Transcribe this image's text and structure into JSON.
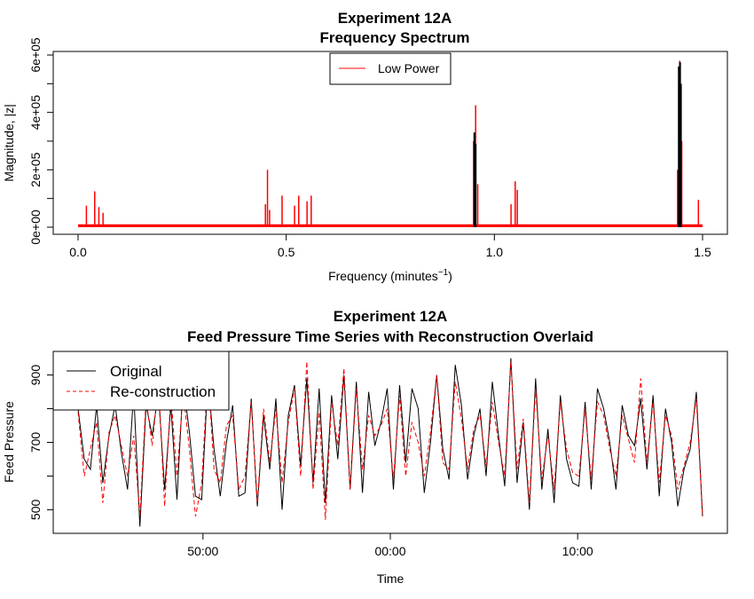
{
  "chart_data": [
    {
      "type": "line",
      "title": "Experiment 12A",
      "subtitle": "Frequency Spectrum",
      "xlabel": "Frequency (minutes",
      "xlabel_sup": "−1",
      "xlabel_suffix": ")",
      "ylabel": "Magnitude, |z|",
      "xlim": [
        0,
        1.5
      ],
      "ylim": [
        0,
        600000
      ],
      "x_ticks": [
        0.0,
        0.5,
        1.0,
        1.5
      ],
      "x_tick_labels": [
        "0.0",
        "0.5",
        "1.0",
        "1.5"
      ],
      "y_ticks": [
        0,
        200000,
        400000,
        600000
      ],
      "y_tick_labels": [
        "0e+00",
        "2e+05",
        "4e+05",
        "6e+05"
      ],
      "legend": {
        "position": "top-center",
        "entries": [
          "Low Power"
        ]
      },
      "series": [
        {
          "name": "Low Power",
          "color": "#ff0000",
          "baseline": 10000,
          "peaks": [
            {
              "x": 0.02,
              "y": 75000
            },
            {
              "x": 0.04,
              "y": 125000
            },
            {
              "x": 0.05,
              "y": 70000
            },
            {
              "x": 0.06,
              "y": 50000
            },
            {
              "x": 0.45,
              "y": 80000
            },
            {
              "x": 0.455,
              "y": 200000
            },
            {
              "x": 0.46,
              "y": 60000
            },
            {
              "x": 0.49,
              "y": 110000
            },
            {
              "x": 0.52,
              "y": 75000
            },
            {
              "x": 0.53,
              "y": 110000
            },
            {
              "x": 0.55,
              "y": 90000
            },
            {
              "x": 0.56,
              "y": 110000
            },
            {
              "x": 0.95,
              "y": 300000
            },
            {
              "x": 0.955,
              "y": 425000
            },
            {
              "x": 0.96,
              "y": 150000
            },
            {
              "x": 1.04,
              "y": 80000
            },
            {
              "x": 1.05,
              "y": 160000
            },
            {
              "x": 1.055,
              "y": 130000
            },
            {
              "x": 1.44,
              "y": 200000
            },
            {
              "x": 1.445,
              "y": 580000
            },
            {
              "x": 1.45,
              "y": 300000
            },
            {
              "x": 1.49,
              "y": 95000
            }
          ]
        },
        {
          "name": "",
          "color": "#000000",
          "peaks": [
            {
              "x": 0.952,
              "y": 330000
            },
            {
              "x": 0.955,
              "y": 290000
            },
            {
              "x": 1.443,
              "y": 560000
            },
            {
              "x": 1.446,
              "y": 575000
            },
            {
              "x": 1.448,
              "y": 500000
            }
          ]
        }
      ]
    },
    {
      "type": "line",
      "title": "Experiment 12A",
      "subtitle": "Feed Pressure Time Series with Reconstruction Overlaid",
      "xlabel": "Time",
      "ylabel": "Feed Pressure",
      "xlim": [
        0,
        100
      ],
      "ylim": [
        430,
        970
      ],
      "x_ticks": [
        20,
        50,
        80
      ],
      "x_tick_labels": [
        "50:00",
        "00:00",
        "10:00"
      ],
      "y_ticks": [
        500,
        700,
        900
      ],
      "y_tick_labels": [
        "500",
        "700",
        "900"
      ],
      "legend": {
        "position": "top-left",
        "entries": [
          "Original",
          "Re-construction"
        ]
      },
      "series": [
        {
          "name": "Original",
          "color": "#000000",
          "dash": "solid",
          "values": [
            800,
            650,
            620,
            810,
            580,
            720,
            810,
            670,
            560,
            850,
            450,
            810,
            720,
            850,
            560,
            810,
            530,
            880,
            730,
            540,
            530,
            890,
            680,
            540,
            700,
            810,
            540,
            550,
            830,
            510,
            780,
            620,
            830,
            500,
            780,
            870,
            630,
            890,
            580,
            860,
            520,
            840,
            650,
            900,
            560,
            880,
            550,
            850,
            690,
            760,
            860,
            560,
            870,
            640,
            860,
            800,
            550,
            700,
            900,
            680,
            590,
            930,
            810,
            590,
            720,
            800,
            600,
            880,
            720,
            570,
            950,
            580,
            760,
            500,
            890,
            560,
            740,
            520,
            840,
            650,
            580,
            570,
            820,
            560,
            860,
            800,
            700,
            560,
            810,
            720,
            690,
            830,
            620,
            840,
            540,
            800,
            700,
            510,
            620,
            680,
            850,
            480
          ]
        },
        {
          "name": "Re-construction",
          "color": "#ff0000",
          "dash": "dashed",
          "values": [
            790,
            600,
            680,
            760,
            520,
            730,
            780,
            690,
            600,
            720,
            480,
            830,
            690,
            880,
            510,
            840,
            600,
            850,
            680,
            480,
            580,
            910,
            620,
            580,
            750,
            780,
            560,
            600,
            820,
            520,
            800,
            640,
            800,
            580,
            760,
            860,
            600,
            940,
            560,
            790,
            470,
            820,
            690,
            920,
            560,
            860,
            620,
            780,
            720,
            750,
            800,
            590,
            840,
            600,
            760,
            700,
            600,
            730,
            900,
            640,
            620,
            880,
            770,
            620,
            740,
            780,
            630,
            820,
            700,
            600,
            940,
            620,
            770,
            520,
            860,
            590,
            720,
            560,
            820,
            680,
            610,
            600,
            800,
            590,
            820,
            780,
            680,
            600,
            780,
            710,
            640,
            890,
            640,
            820,
            580,
            780,
            720,
            560,
            630,
            700,
            830,
            480
          ]
        }
      ]
    }
  ]
}
